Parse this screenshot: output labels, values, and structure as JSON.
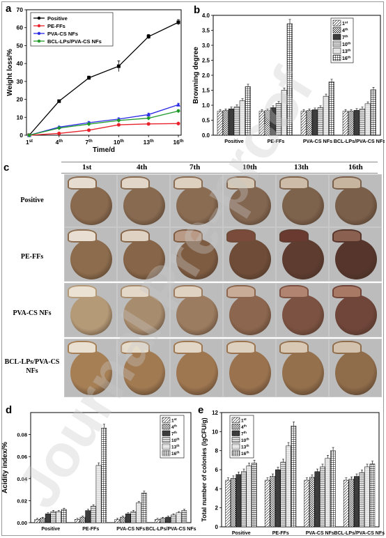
{
  "panels": {
    "a": "a",
    "b": "b",
    "c": "c",
    "d": "d",
    "e": "e"
  },
  "watermark": "Journal Pre-proof",
  "colors": {
    "positive": "#000000",
    "pe": "#e8222a",
    "pva": "#2a2ae6",
    "bcl": "#1f9a2a"
  },
  "photos": {
    "columns": [
      "1st",
      "4th",
      "7th",
      "10th",
      "13th",
      "16th"
    ],
    "rows": [
      "Positive",
      "PE-FFs",
      "PVA-CS NFs",
      "BCL-LPs/PVA-CS NFs"
    ]
  },
  "chart_data": [
    {
      "panel": "a",
      "type": "line",
      "xlabel": "Time/d",
      "ylabel": "Weight loss/%",
      "x": [
        "1st",
        "4th",
        "7th",
        "10th",
        "13th",
        "16th"
      ],
      "ylim": [
        0,
        70
      ],
      "yticks": [
        0,
        10,
        20,
        30,
        40,
        50,
        60,
        70
      ],
      "legend": "top-left",
      "series": [
        {
          "name": "Positive",
          "values": [
            0,
            19,
            32,
            38.5,
            55,
            63
          ],
          "errors": [
            0,
            0.6,
            1,
            3,
            1.2,
            1.5
          ]
        },
        {
          "name": "PE-FFs",
          "values": [
            0,
            1,
            2.8,
            5.8,
            6.3,
            6.5
          ],
          "errors": [
            0,
            0.3,
            0.4,
            0.5,
            0.4,
            0.4
          ]
        },
        {
          "name": "PVA-CS NFs",
          "values": [
            0,
            4.5,
            7,
            9,
            11.5,
            17
          ],
          "errors": [
            0,
            0.5,
            0.6,
            0.7,
            0.8,
            0.8
          ]
        },
        {
          "name": "BCL-LPs/PVA-CS NFs",
          "values": [
            0,
            4,
            6.2,
            8.2,
            9.5,
            13.5
          ],
          "errors": [
            0,
            0.4,
            0.5,
            0.6,
            0.6,
            0.7
          ]
        }
      ]
    },
    {
      "panel": "b",
      "type": "bar",
      "xlabel": "",
      "ylabel": "Browning degree",
      "categories": [
        "Positive",
        "PE-FFs",
        "PVA-CS NFs",
        "BCL-LPs/PVA-CS NFs"
      ],
      "ylim": [
        0,
        4.0
      ],
      "yticks": [
        "0.0",
        "0.5",
        "1.0",
        "1.5",
        "2.0",
        "2.5",
        "3.0",
        "3.5",
        "4.0"
      ],
      "legend": "top-right",
      "series": [
        {
          "name": "1st",
          "values": [
            0.8,
            0.8,
            0.8,
            0.8
          ]
        },
        {
          "name": "4th",
          "values": [
            0.82,
            0.82,
            0.82,
            0.8
          ]
        },
        {
          "name": "7th",
          "values": [
            0.88,
            0.92,
            0.85,
            0.83
          ]
        },
        {
          "name": "10th",
          "values": [
            0.95,
            1.06,
            0.92,
            0.88
          ]
        },
        {
          "name": "13th",
          "values": [
            1.15,
            1.5,
            1.3,
            1.05
          ]
        },
        {
          "name": "16th",
          "values": [
            1.62,
            3.72,
            1.78,
            1.52
          ]
        }
      ]
    },
    {
      "panel": "d",
      "type": "bar",
      "xlabel": "",
      "ylabel": "Acidity index/%",
      "categories": [
        "Positive",
        "PE-FFs",
        "PVA-CS NFs",
        "BCL-LPs/PVA-CS NFs"
      ],
      "ylim": [
        0,
        0.1
      ],
      "yticks": [
        "0.00",
        "0.02",
        "0.04",
        "0.06",
        "0.08"
      ],
      "legend": "top-right",
      "series": [
        {
          "name": "1st",
          "values": [
            0.003,
            0.003,
            0.003,
            0.003
          ]
        },
        {
          "name": "4th",
          "values": [
            0.004,
            0.005,
            0.005,
            0.004
          ]
        },
        {
          "name": "7th",
          "values": [
            0.008,
            0.011,
            0.008,
            0.005
          ]
        },
        {
          "name": "10th",
          "values": [
            0.01,
            0.015,
            0.01,
            0.007
          ]
        },
        {
          "name": "13th",
          "values": [
            0.01,
            0.052,
            0.018,
            0.009
          ]
        },
        {
          "name": "16th",
          "values": [
            0.012,
            0.086,
            0.027,
            0.011
          ]
        }
      ]
    },
    {
      "panel": "e",
      "type": "bar",
      "xlabel": "",
      "ylabel": "Total number of colonies (lgCFU/g)",
      "categories": [
        "Positive",
        "PE-FFs",
        "PVA-CS NFs",
        "BCL-LPs/PVA-CS NFs"
      ],
      "ylim": [
        0,
        12
      ],
      "yticks": [
        "0",
        "2",
        "4",
        "6",
        "8",
        "10",
        "12"
      ],
      "legend": "top-left",
      "series": [
        {
          "name": "1st",
          "values": [
            4.9,
            4.9,
            4.9,
            4.9
          ]
        },
        {
          "name": "4th",
          "values": [
            5.1,
            5.3,
            5.2,
            5.0
          ]
        },
        {
          "name": "7th",
          "values": [
            5.5,
            6.0,
            5.8,
            5.3
          ]
        },
        {
          "name": "10th",
          "values": [
            5.8,
            6.8,
            6.3,
            5.7
          ]
        },
        {
          "name": "13th",
          "values": [
            6.4,
            8.5,
            7.2,
            6.3
          ]
        },
        {
          "name": "16th",
          "values": [
            6.7,
            10.6,
            8.0,
            6.6
          ]
        }
      ]
    }
  ]
}
